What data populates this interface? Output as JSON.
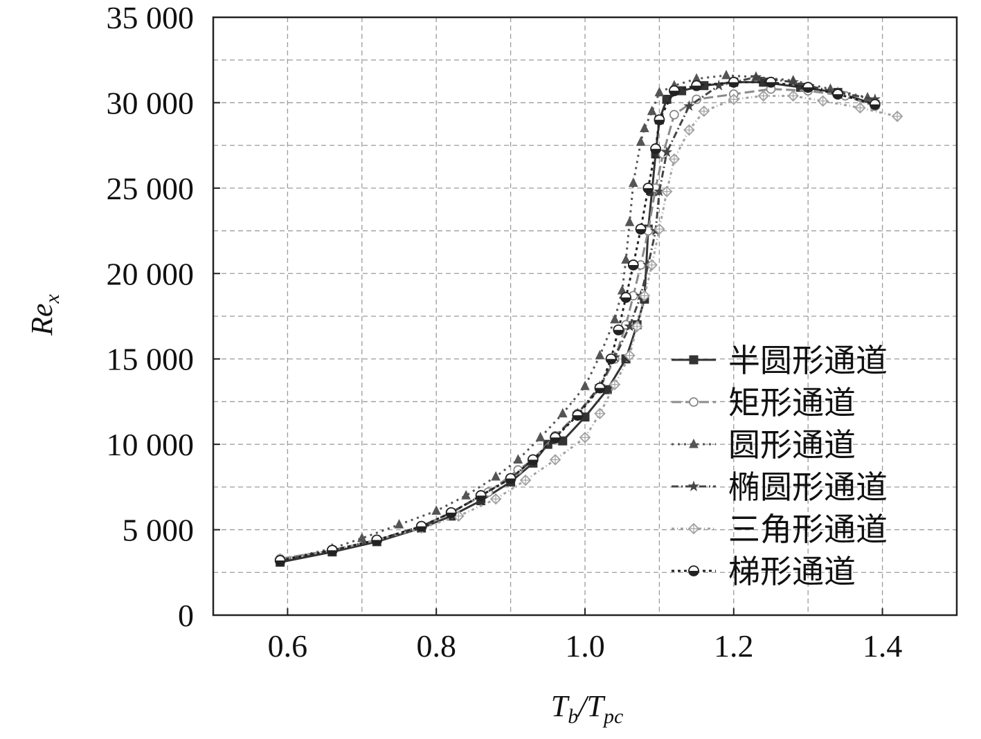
{
  "chart_data": {
    "type": "line",
    "xlabel": {
      "main": "T",
      "sub1": "b",
      "sep": "/",
      "main2": "T",
      "sub2": "pc"
    },
    "ylabel": {
      "main": "Re",
      "sub": "x"
    },
    "xlim": [
      0.5,
      1.5
    ],
    "ylim": [
      0,
      35000
    ],
    "x_ticks": [
      0.6,
      0.8,
      1.0,
      1.2,
      1.4
    ],
    "x_tick_labels": [
      "0.6",
      "0.8",
      "1.0",
      "1.2",
      "1.4"
    ],
    "y_ticks": [
      0,
      5000,
      10000,
      15000,
      20000,
      25000,
      30000,
      35000
    ],
    "y_tick_labels": [
      "0",
      "5 000",
      "10 000",
      "15 000",
      "20 000",
      "25 000",
      "30 000",
      "35 000"
    ],
    "x_grid": [
      0.6,
      0.7,
      0.8,
      0.9,
      1.0,
      1.1,
      1.2,
      1.3,
      1.4
    ],
    "y_grid": [
      2500,
      5000,
      7500,
      10000,
      12500,
      15000,
      17500,
      20000,
      22500,
      25000,
      27500,
      30000,
      32500
    ],
    "grid": true,
    "legend_position": "right",
    "series": [
      {
        "name": "半圆形通道",
        "color": "#333333",
        "dash": "",
        "marker": "square-filled",
        "x": [
          0.59,
          0.66,
          0.72,
          0.78,
          0.82,
          0.86,
          0.9,
          0.93,
          0.95,
          0.97,
          1.0,
          1.03,
          1.055,
          1.07,
          1.08,
          1.085,
          1.09,
          1.095,
          1.1,
          1.11,
          1.13,
          1.16,
          1.2,
          1.24,
          1.29,
          1.34,
          1.39
        ],
        "y": [
          3100,
          3700,
          4300,
          5100,
          5800,
          6700,
          7800,
          8900,
          10000,
          10200,
          11600,
          13200,
          15000,
          17000,
          18500,
          22600,
          24800,
          27000,
          29000,
          30200,
          30700,
          31000,
          31200,
          31200,
          30900,
          30600,
          29900
        ]
      },
      {
        "name": "矩形通道",
        "color": "#8a8a8a",
        "dash": "14 6",
        "marker": "circle-open",
        "x": [
          0.59,
          0.66,
          0.72,
          0.78,
          0.82,
          0.87,
          0.91,
          0.93,
          0.96,
          0.99,
          1.02,
          1.04,
          1.055,
          1.065,
          1.075,
          1.085,
          1.095,
          1.105,
          1.12,
          1.15,
          1.2,
          1.25,
          1.3,
          1.35,
          1.39
        ],
        "y": [
          3300,
          3800,
          4400,
          5200,
          6000,
          7200,
          8500,
          9100,
          10500,
          11800,
          13300,
          15000,
          17000,
          18700,
          20500,
          22500,
          25000,
          27000,
          29300,
          30200,
          30500,
          30800,
          30700,
          30400,
          29800
        ]
      },
      {
        "name": "圆形通道",
        "color": "#555555",
        "dash": "3 6",
        "marker": "triangle-filled",
        "x": [
          0.59,
          0.66,
          0.7,
          0.75,
          0.8,
          0.84,
          0.88,
          0.91,
          0.94,
          0.97,
          1.0,
          1.02,
          1.04,
          1.05,
          1.055,
          1.06,
          1.065,
          1.075,
          1.08,
          1.09,
          1.1,
          1.12,
          1.15,
          1.19,
          1.23,
          1.28,
          1.33,
          1.38
        ],
        "y": [
          3200,
          3900,
          4500,
          5300,
          6100,
          7000,
          8100,
          9100,
          10400,
          11800,
          13400,
          15200,
          17300,
          19000,
          20800,
          23000,
          25300,
          27700,
          28500,
          29500,
          30600,
          31000,
          31400,
          31600,
          31500,
          31300,
          30800,
          30300
        ]
      },
      {
        "name": "椭圆形通道",
        "color": "#444444",
        "dash": "10 4 2 4",
        "marker": "star",
        "x": [
          0.59,
          0.66,
          0.72,
          0.78,
          0.82,
          0.86,
          0.9,
          0.93,
          0.96,
          0.99,
          1.02,
          1.04,
          1.06,
          1.075,
          1.085,
          1.095,
          1.1,
          1.11,
          1.14,
          1.18,
          1.23,
          1.28,
          1.34,
          1.39
        ],
        "y": [
          3200,
          3800,
          4400,
          5200,
          6000,
          7000,
          8000,
          9100,
          10400,
          11800,
          13400,
          15100,
          16900,
          18700,
          20500,
          22500,
          24800,
          27100,
          29800,
          31000,
          31500,
          31200,
          30600,
          30200
        ]
      },
      {
        "name": "三角形通道",
        "color": "#a0a0a0",
        "dash": "4 4 1 4",
        "marker": "diamond-open",
        "x": [
          0.59,
          0.66,
          0.72,
          0.78,
          0.83,
          0.88,
          0.92,
          0.96,
          1.0,
          1.02,
          1.04,
          1.06,
          1.07,
          1.08,
          1.09,
          1.1,
          1.11,
          1.12,
          1.14,
          1.16,
          1.2,
          1.24,
          1.28,
          1.32,
          1.37,
          1.42
        ],
        "y": [
          3300,
          3800,
          4400,
          5100,
          5800,
          6800,
          7900,
          9100,
          10400,
          11800,
          13500,
          15200,
          16900,
          18700,
          20500,
          22600,
          24800,
          26700,
          28400,
          29500,
          30200,
          30400,
          30400,
          30100,
          29700,
          29200
        ]
      },
      {
        "name": "梯形通道",
        "color": "#222222",
        "dash": "4 5",
        "marker": "circle-half",
        "x": [
          0.59,
          0.66,
          0.72,
          0.78,
          0.82,
          0.86,
          0.9,
          0.93,
          0.96,
          0.99,
          1.02,
          1.035,
          1.045,
          1.055,
          1.065,
          1.075,
          1.085,
          1.095,
          1.1,
          1.12,
          1.15,
          1.2,
          1.25,
          1.3,
          1.34,
          1.39
        ],
        "y": [
          3200,
          3800,
          4400,
          5200,
          6000,
          7000,
          8000,
          9100,
          10400,
          11700,
          13300,
          15000,
          16700,
          18600,
          20500,
          22600,
          25000,
          27300,
          29000,
          30700,
          31000,
          31200,
          31200,
          30900,
          30500,
          29900
        ]
      }
    ]
  }
}
